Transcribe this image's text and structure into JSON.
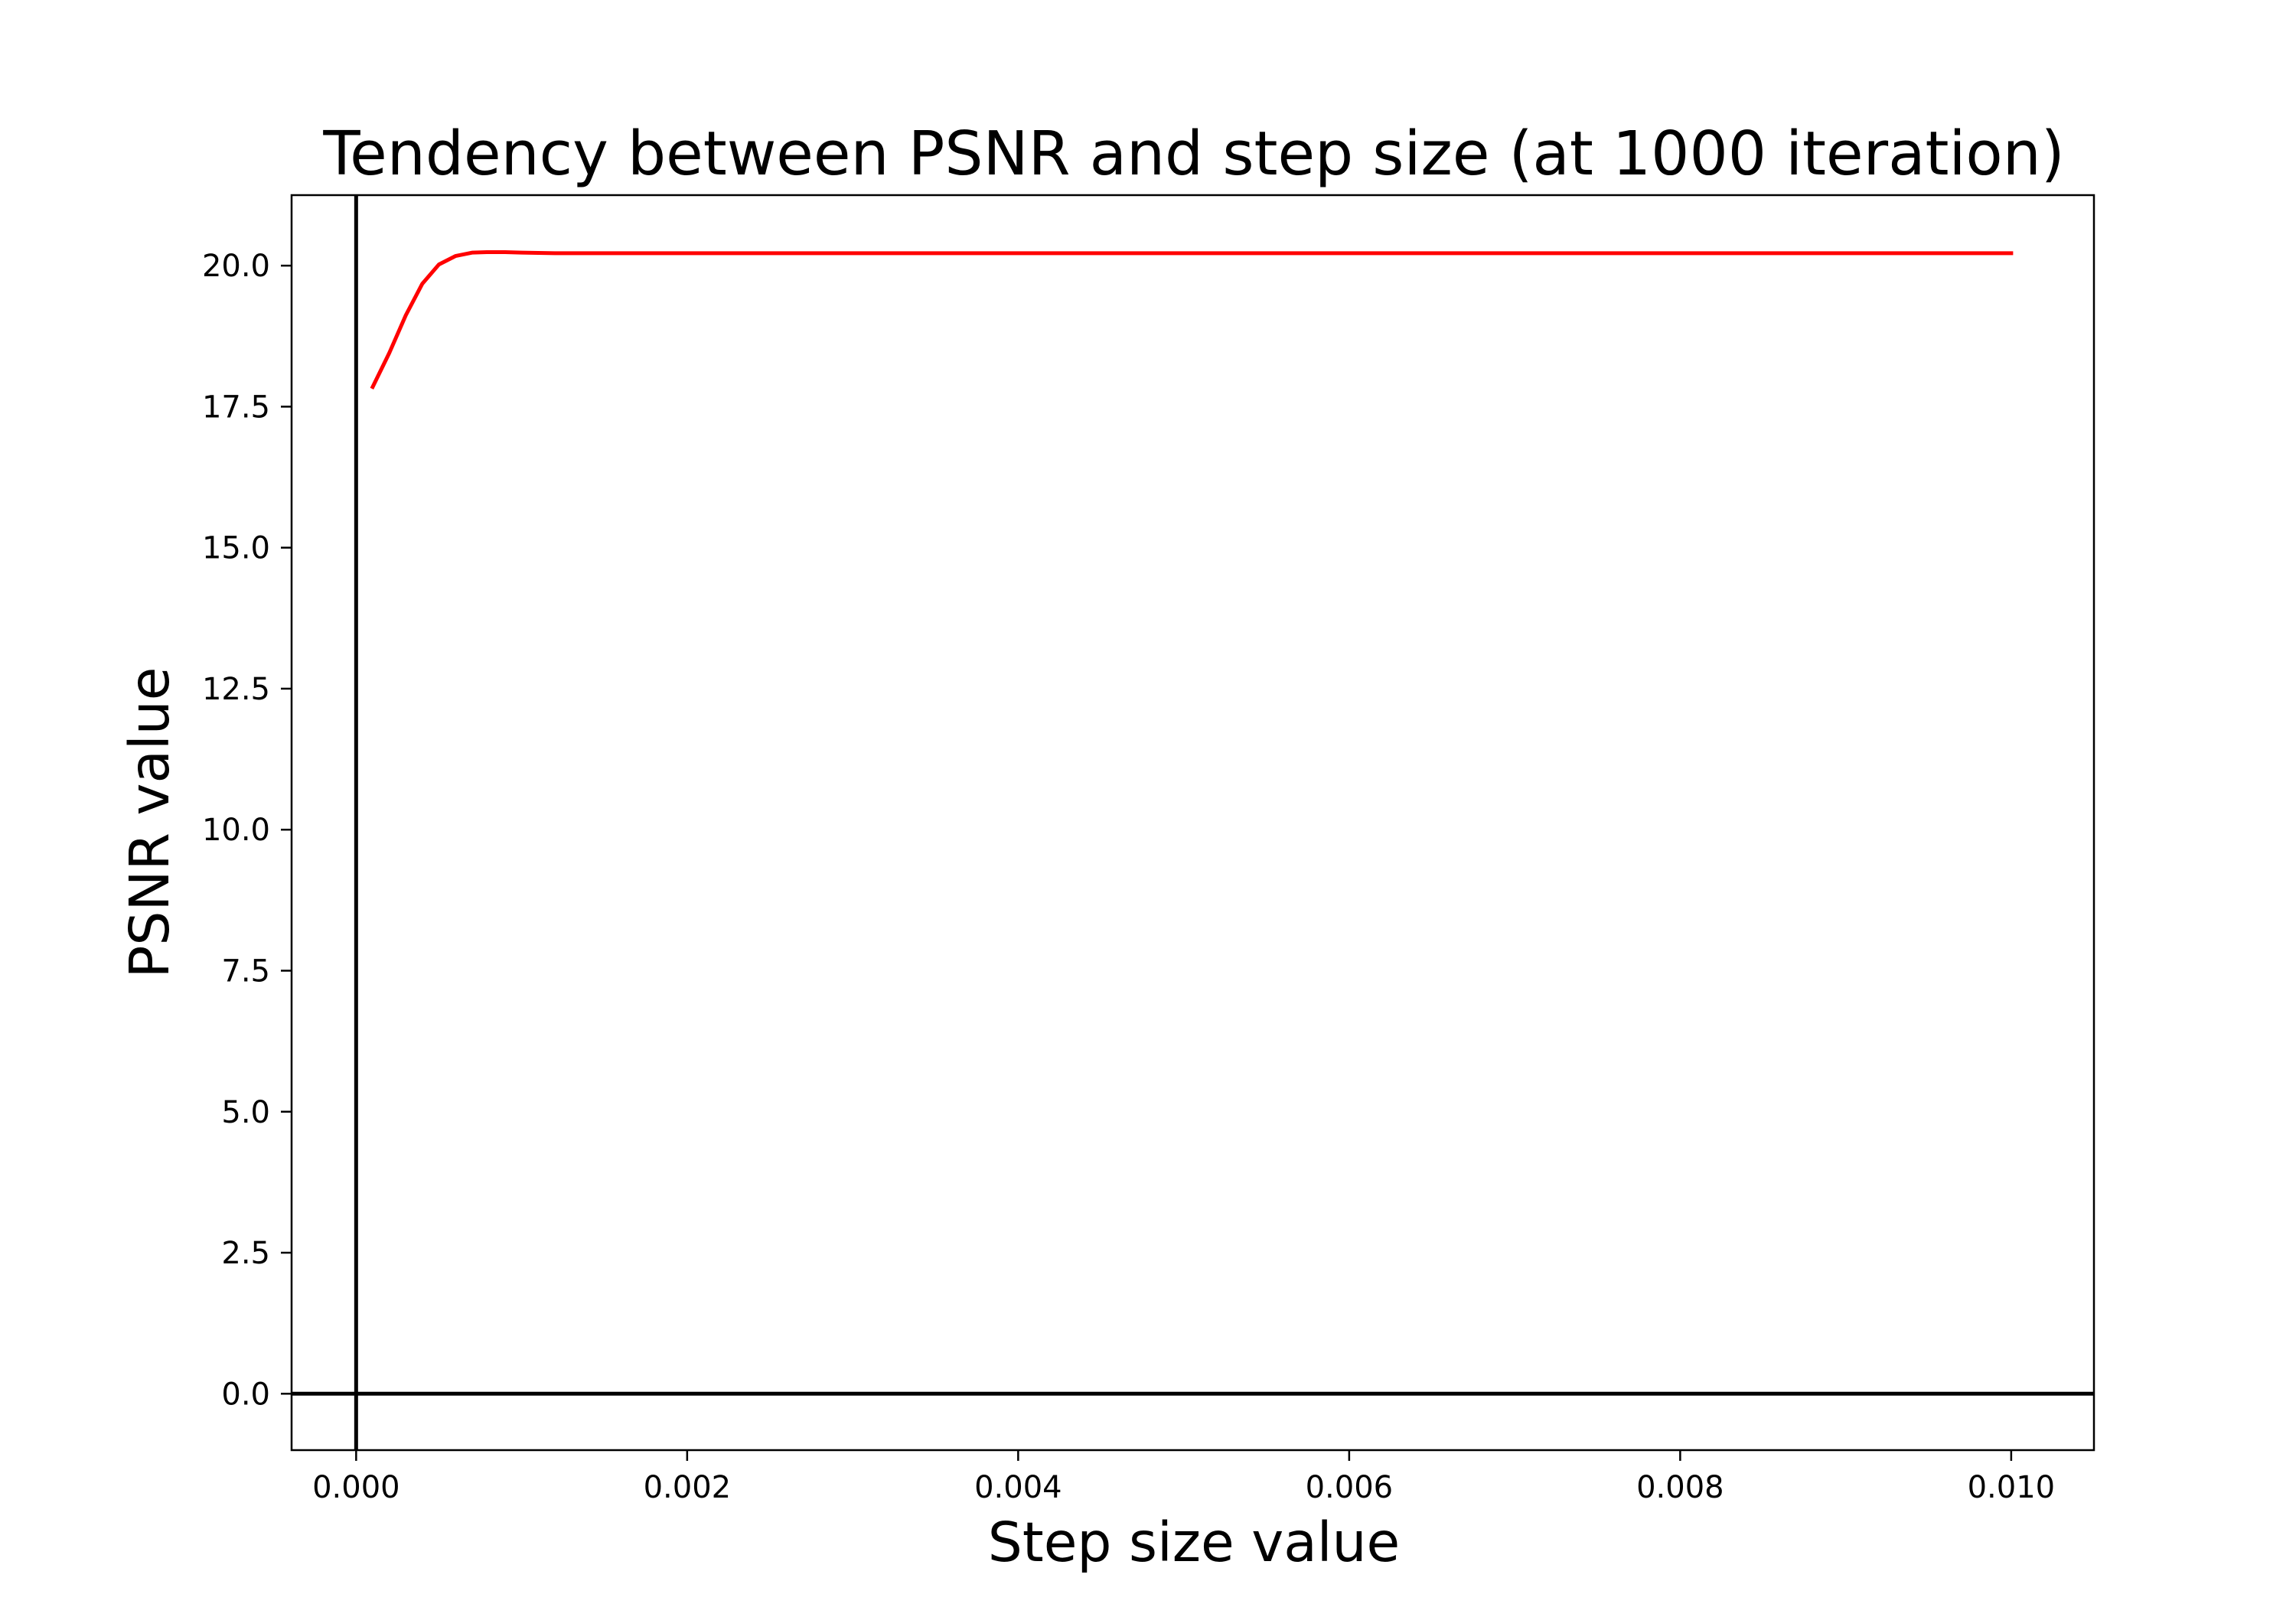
{
  "chart_data": {
    "type": "line",
    "title": "Tendency between PSNR and step size (at 1000 iteration)",
    "xlabel": "Step size value",
    "ylabel": "PSNR value",
    "xlim": [
      -0.00039,
      0.0105
    ],
    "ylim": [
      -1.0,
      21.25
    ],
    "x_ticks": [
      0.0,
      0.002,
      0.004,
      0.006,
      0.008,
      0.01
    ],
    "x_tick_labels": [
      "0.000",
      "0.002",
      "0.004",
      "0.006",
      "0.008",
      "0.010"
    ],
    "y_ticks": [
      0.0,
      2.5,
      5.0,
      7.5,
      10.0,
      12.5,
      15.0,
      17.5,
      20.0
    ],
    "y_tick_labels": [
      "0.0",
      "2.5",
      "5.0",
      "7.5",
      "10.0",
      "12.5",
      "15.0",
      "17.5",
      "20.0"
    ],
    "grid": false,
    "reference_lines": {
      "x": 0,
      "y": 0
    },
    "series": [
      {
        "color": "#ff0000",
        "x": [
          0.0001,
          0.0002,
          0.0003,
          0.0004,
          0.0005,
          0.0006,
          0.0007,
          0.0008,
          0.0009,
          0.001,
          0.0012,
          0.0015,
          0.002,
          0.003,
          0.004,
          0.005,
          0.006,
          0.007,
          0.008,
          0.009,
          0.01
        ],
        "y": [
          17.85,
          18.45,
          19.12,
          19.68,
          20.02,
          20.17,
          20.23,
          20.24,
          20.24,
          20.23,
          20.22,
          20.22,
          20.22,
          20.22,
          20.22,
          20.22,
          20.22,
          20.22,
          20.22,
          20.22,
          20.22
        ]
      }
    ]
  }
}
